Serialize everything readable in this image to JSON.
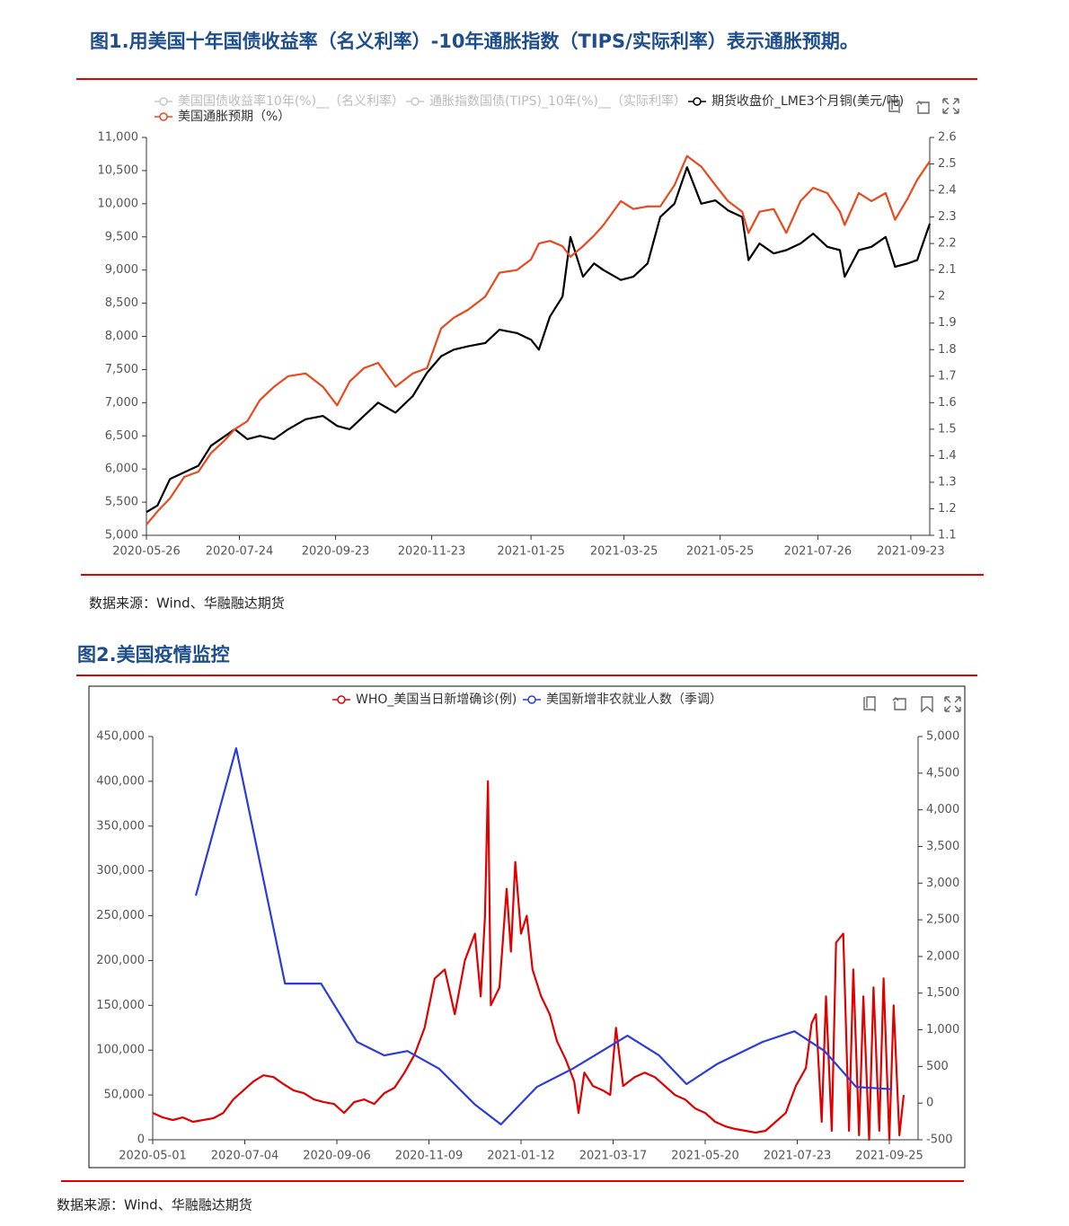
{
  "chart_data": [
    {
      "type": "line",
      "title": "图1.用美国十年国债收益率（名义利率）-10年通胀指数（TIPS/实际利率）表示通胀预期。",
      "source": "数据来源：Wind、华融融达期货",
      "x": [
        "2020-05-26",
        "2020-06-02",
        "2020-06-10",
        "2020-06-19",
        "2020-06-28",
        "2020-07-06",
        "2020-07-15",
        "2020-07-21",
        "2020-07-29",
        "2020-08-06",
        "2020-08-15",
        "2020-08-24",
        "2020-09-04",
        "2020-09-15",
        "2020-09-24",
        "2020-10-02",
        "2020-10-11",
        "2020-10-20",
        "2020-10-31",
        "2020-11-11",
        "2020-11-20",
        "2020-11-29",
        "2020-12-07",
        "2020-12-16",
        "2020-12-27",
        "2021-01-05",
        "2021-01-16",
        "2021-01-25",
        "2021-01-30",
        "2021-02-06",
        "2021-02-14",
        "2021-02-19",
        "2021-02-27",
        "2021-03-06",
        "2021-03-12",
        "2021-03-23",
        "2021-03-31",
        "2021-04-09",
        "2021-04-17",
        "2021-04-26",
        "2021-05-04",
        "2021-05-13",
        "2021-05-22",
        "2021-05-30",
        "2021-06-08",
        "2021-06-12",
        "2021-06-19",
        "2021-06-28",
        "2021-07-06",
        "2021-07-15",
        "2021-07-23",
        "2021-08-01",
        "2021-08-09",
        "2021-08-12",
        "2021-08-21",
        "2021-08-29",
        "2021-09-07",
        "2021-09-13",
        "2021-09-21",
        "2021-09-27",
        "2021-10-05"
      ],
      "xlim": [
        "2020-05-26",
        "2021-10-05"
      ],
      "xticks": [
        "2020-05-26",
        "2020-07-24",
        "2020-09-23",
        "2020-11-23",
        "2021-01-25",
        "2021-03-25",
        "2021-05-25",
        "2021-07-26",
        "2021-09-23"
      ],
      "ylim": [
        5000,
        11000
      ],
      "yticks": [
        {
          "value": 5000,
          "label": "5,000"
        },
        {
          "value": 5500,
          "label": "5,500"
        },
        {
          "value": 6000,
          "label": "6,000"
        },
        {
          "value": 6500,
          "label": "6,500"
        },
        {
          "value": 7000,
          "label": "7,000"
        },
        {
          "value": 7500,
          "label": "7,500"
        },
        {
          "value": 8000,
          "label": "8,000"
        },
        {
          "value": 8500,
          "label": "8,500"
        },
        {
          "value": 9000,
          "label": "9,000"
        },
        {
          "value": 9500,
          "label": "9,500"
        },
        {
          "value": 10000,
          "label": "10,000"
        },
        {
          "value": 10500,
          "label": "10,500"
        },
        {
          "value": 11000,
          "label": "11,000"
        }
      ],
      "y2lim": [
        1.1,
        2.6
      ],
      "y2ticks": [
        1.1,
        1.2,
        1.3,
        1.4,
        1.5,
        1.6,
        1.7,
        1.8,
        1.9,
        2,
        2.1,
        2.2,
        2.3,
        2.4,
        2.5,
        2.6
      ],
      "series": [
        {
          "name": "美国国债收益率10年(%)__（名义利率）",
          "hidden": true
        },
        {
          "name": "通胀指数国债(TIPS)_10年(%)__（实际利率）",
          "hidden": true
        },
        {
          "name": "期货收盘价_LME3个月铜(美元/吨)",
          "color": "#000000",
          "values": [
            5350,
            5450,
            5850,
            5950,
            6050,
            6350,
            6500,
            6600,
            6450,
            6500,
            6450,
            6600,
            6750,
            6800,
            6650,
            6600,
            6800,
            7000,
            6850,
            7100,
            7450,
            7700,
            7800,
            7850,
            7900,
            8100,
            8050,
            7950,
            7800,
            8300,
            8600,
            9500,
            8900,
            9100,
            9000,
            8850,
            8900,
            9100,
            9800,
            10000,
            10550,
            10000,
            10050,
            9900,
            9800,
            9150,
            9400,
            9250,
            9300,
            9400,
            9550,
            9350,
            9300,
            8900,
            9300,
            9350,
            9500,
            9050,
            9100,
            9150,
            9700
          ]
        },
        {
          "name": "美国通胀预期（%）",
          "color": "#e8491d",
          "axis": "y2",
          "values": [
            1.14,
            1.19,
            1.24,
            1.32,
            1.34,
            1.41,
            1.46,
            1.5,
            1.53,
            1.61,
            1.66,
            1.7,
            1.71,
            1.66,
            1.59,
            1.68,
            1.73,
            1.75,
            1.66,
            1.71,
            1.73,
            1.88,
            1.92,
            1.95,
            2,
            2.09,
            2.1,
            2.14,
            2.2,
            2.21,
            2.19,
            2.15,
            2.19,
            2.23,
            2.27,
            2.36,
            2.33,
            2.34,
            2.34,
            2.42,
            2.53,
            2.49,
            2.42,
            2.36,
            2.32,
            2.24,
            2.32,
            2.33,
            2.24,
            2.36,
            2.41,
            2.39,
            2.32,
            2.27,
            2.39,
            2.36,
            2.39,
            2.29,
            2.37,
            2.44,
            2.51
          ]
        }
      ]
    },
    {
      "type": "line",
      "title": "图2.美国疫情监控",
      "source": "数据来源：Wind、华融融达期货",
      "xlim": [
        "2020-05-01",
        "2021-10-15"
      ],
      "xticks": [
        "2020-05-01",
        "2020-07-04",
        "2020-09-06",
        "2020-11-09",
        "2021-01-12",
        "2021-03-17",
        "2021-05-20",
        "2021-07-23",
        "2021-09-25"
      ],
      "ylim": [
        0,
        450000
      ],
      "yticks": [
        0,
        {
          "value": 50000,
          "label": "50,000"
        },
        {
          "value": 100000,
          "label": "100,000"
        },
        {
          "value": 150000,
          "label": "150,000"
        },
        {
          "value": 200000,
          "label": "200,000"
        },
        {
          "value": 250000,
          "label": "250,000"
        },
        {
          "value": 300000,
          "label": "300,000"
        },
        {
          "value": 350000,
          "label": "350,000"
        },
        {
          "value": 400000,
          "label": "400,000"
        },
        {
          "value": 450000,
          "label": "450,000"
        }
      ],
      "y2lim": [
        -500,
        5000
      ],
      "y2ticks": [
        -500,
        0,
        500,
        {
          "value": 1000,
          "label": "1,000"
        },
        {
          "value": 1500,
          "label": "1,500"
        },
        {
          "value": 2000,
          "label": "2,000"
        },
        {
          "value": 2500,
          "label": "2,500"
        },
        {
          "value": 3000,
          "label": "3,000"
        },
        {
          "value": 3500,
          "label": "3,500"
        },
        {
          "value": 4000,
          "label": "4,000"
        },
        {
          "value": 4500,
          "label": "4,500"
        },
        {
          "value": 5000,
          "label": "5,000"
        }
      ],
      "series": [
        {
          "name": "WHO_美国当日新增确诊(例)",
          "color": "#e00000",
          "x": [
            "2020-05-01",
            "2020-05-08",
            "2020-05-15",
            "2020-05-22",
            "2020-05-29",
            "2020-06-05",
            "2020-06-12",
            "2020-06-19",
            "2020-06-26",
            "2020-07-03",
            "2020-07-10",
            "2020-07-17",
            "2020-07-24",
            "2020-07-31",
            "2020-08-07",
            "2020-08-14",
            "2020-08-21",
            "2020-08-28",
            "2020-09-04",
            "2020-09-11",
            "2020-09-18",
            "2020-09-25",
            "2020-10-02",
            "2020-10-09",
            "2020-10-16",
            "2020-10-23",
            "2020-10-30",
            "2020-11-06",
            "2020-11-13",
            "2020-11-20",
            "2020-11-27",
            "2020-12-04",
            "2020-12-11",
            "2020-12-15",
            "2020-12-18",
            "2020-12-20",
            "2020-12-22",
            "2020-12-28",
            "2021-01-02",
            "2021-01-05",
            "2021-01-08",
            "2021-01-12",
            "2021-01-16",
            "2021-01-20",
            "2021-01-26",
            "2021-02-01",
            "2021-02-06",
            "2021-02-12",
            "2021-02-18",
            "2021-02-21",
            "2021-02-25",
            "2021-03-03",
            "2021-03-10",
            "2021-03-15",
            "2021-03-19",
            "2021-03-24",
            "2021-04-01",
            "2021-04-08",
            "2021-04-15",
            "2021-04-22",
            "2021-04-29",
            "2021-05-06",
            "2021-05-13",
            "2021-05-20",
            "2021-05-27",
            "2021-06-03",
            "2021-06-10",
            "2021-06-17",
            "2021-06-24",
            "2021-07-01",
            "2021-07-08",
            "2021-07-15",
            "2021-07-22",
            "2021-07-29",
            "2021-08-02",
            "2021-08-05",
            "2021-08-09",
            "2021-08-12",
            "2021-08-16",
            "2021-08-19",
            "2021-08-24",
            "2021-08-28",
            "2021-08-31",
            "2021-09-04",
            "2021-09-07",
            "2021-09-11",
            "2021-09-14",
            "2021-09-18",
            "2021-09-21",
            "2021-09-25",
            "2021-09-28",
            "2021-10-02",
            "2021-10-05"
          ],
          "values": [
            30000,
            25000,
            22000,
            25000,
            20000,
            22000,
            24000,
            30000,
            45000,
            55000,
            65000,
            72000,
            70000,
            62000,
            55000,
            52000,
            45000,
            42000,
            40000,
            30000,
            42000,
            45000,
            40000,
            52000,
            58000,
            75000,
            95000,
            125000,
            180000,
            190000,
            140000,
            200000,
            230000,
            160000,
            250000,
            400000,
            150000,
            170000,
            280000,
            210000,
            310000,
            230000,
            250000,
            190000,
            160000,
            140000,
            110000,
            90000,
            65000,
            30000,
            75000,
            60000,
            55000,
            50000,
            125000,
            60000,
            70000,
            75000,
            70000,
            60000,
            50000,
            45000,
            35000,
            30000,
            20000,
            15000,
            12000,
            10000,
            8000,
            10000,
            20000,
            30000,
            60000,
            80000,
            130000,
            140000,
            20000,
            160000,
            10000,
            220000,
            230000,
            10000,
            190000,
            5000,
            160000,
            0,
            170000,
            10000,
            180000,
            0,
            150000,
            5000,
            50000
          ]
        },
        {
          "name": "美国新增非农就业人数（季调）",
          "color": "#2b3bdc",
          "axis": "y2",
          "x": [
            "2020-05-31",
            "2020-06-28",
            "2020-08-01",
            "2020-08-26",
            "2020-09-20",
            "2020-10-09",
            "2020-10-25",
            "2020-11-16",
            "2020-12-11",
            "2020-12-29",
            "2021-01-23",
            "2021-02-17",
            "2021-03-27",
            "2021-04-18",
            "2021-05-07",
            "2021-05-28",
            "2021-06-29",
            "2021-07-21",
            "2021-08-11",
            "2021-09-02",
            "2021-09-27"
          ],
          "values": [
            2830,
            4840,
            1630,
            1630,
            835,
            650,
            710,
            470,
            -20,
            -290,
            220,
            470,
            920,
            650,
            260,
            530,
            835,
            980,
            710,
            220,
            190
          ]
        }
      ]
    }
  ]
}
